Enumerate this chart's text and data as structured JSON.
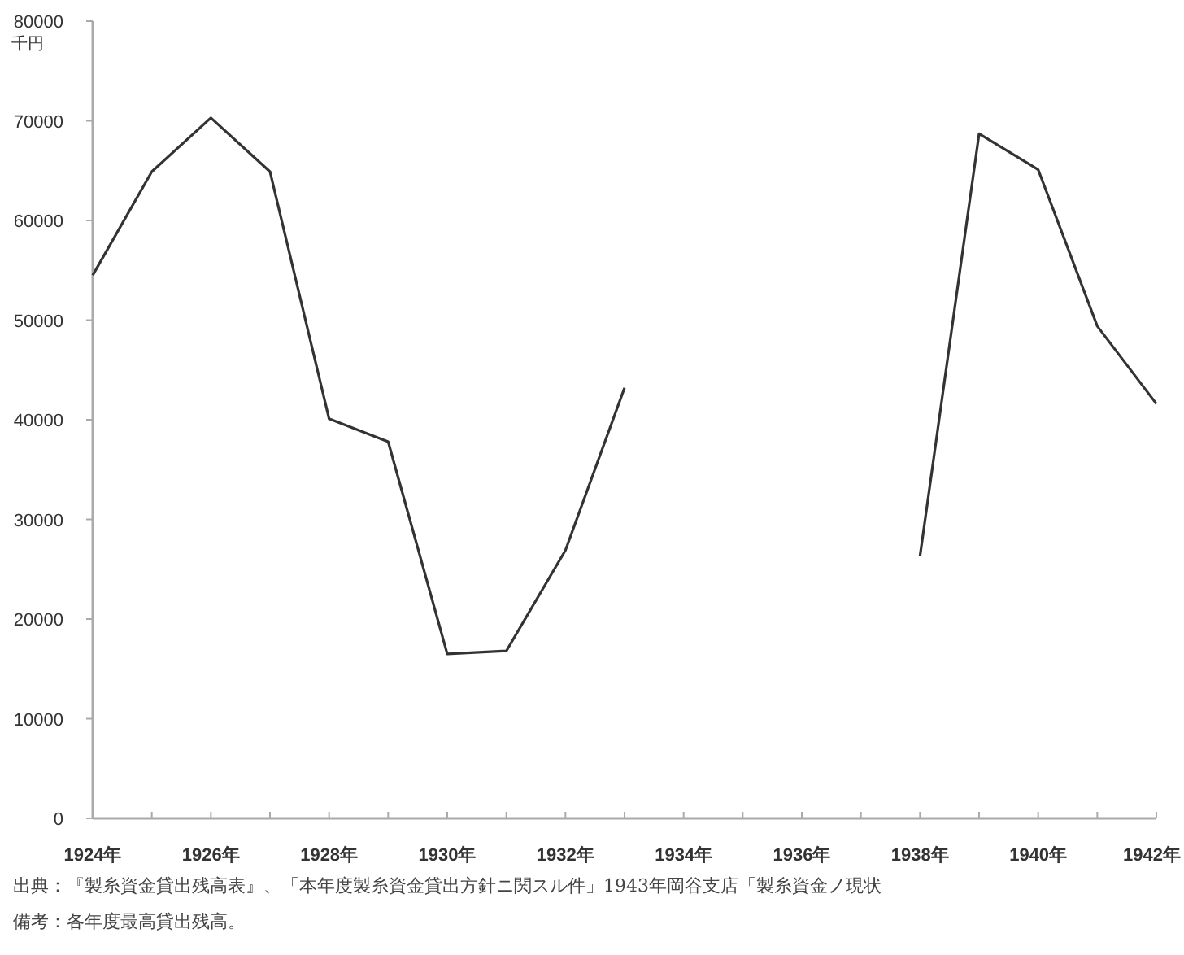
{
  "chart_data": {
    "type": "line",
    "ylabel": "千円",
    "x": [
      1924,
      1925,
      1926,
      1927,
      1928,
      1929,
      1930,
      1931,
      1932,
      1933,
      1934,
      1935,
      1936,
      1937,
      1938,
      1939,
      1940,
      1941,
      1942
    ],
    "series": [
      {
        "color": "#333333",
        "values": [
          54500,
          64900,
          70300,
          64900,
          40100,
          37800,
          16500,
          16800,
          26900,
          43200,
          null,
          null,
          null,
          null,
          26300,
          68700,
          65100,
          49400,
          41600
        ]
      }
    ],
    "xlim": [
      1924,
      1942
    ],
    "xticks": [
      {
        "value": 1924,
        "label": "1924年"
      },
      {
        "value": 1925,
        "label": null
      },
      {
        "value": 1926,
        "label": "1926年"
      },
      {
        "value": 1927,
        "label": null
      },
      {
        "value": 1928,
        "label": "1928年"
      },
      {
        "value": 1929,
        "label": null
      },
      {
        "value": 1930,
        "label": "1930年"
      },
      {
        "value": 1931,
        "label": null
      },
      {
        "value": 1932,
        "label": "1932年"
      },
      {
        "value": 1933,
        "label": null
      },
      {
        "value": 1934,
        "label": "1934年"
      },
      {
        "value": 1935,
        "label": null
      },
      {
        "value": 1936,
        "label": "1936年"
      },
      {
        "value": 1937,
        "label": null
      },
      {
        "value": 1938,
        "label": "1938年"
      },
      {
        "value": 1939,
        "label": null
      },
      {
        "value": 1940,
        "label": "1940年"
      },
      {
        "value": 1941,
        "label": null
      },
      {
        "value": 1942,
        "label": "1942年"
      }
    ],
    "ylim": [
      0,
      80000
    ],
    "yticks": [
      0,
      10000,
      20000,
      30000,
      40000,
      50000,
      60000,
      70000,
      80000
    ],
    "grid": false,
    "marker": "none",
    "line_style": "solid",
    "annotations": [
      "出典：『製糸資金貸出残高表』、「本年度製糸資金貸出方針ニ関スル件」1943年岡谷支店「製糸資金ノ現状",
      "備考：各年度最高貸出残高。"
    ]
  }
}
